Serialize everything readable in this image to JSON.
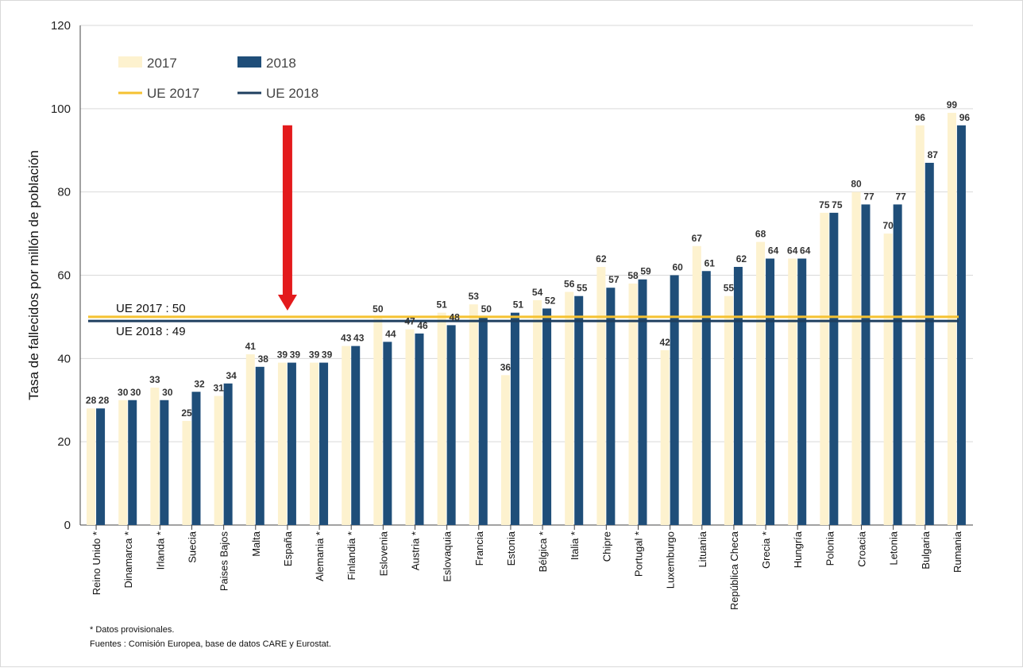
{
  "chart_data": {
    "type": "bar",
    "ylabel": "Tasa de fallecidos por millón de población",
    "xlabel": "",
    "ylim": [
      0,
      120
    ],
    "yticks": [
      0,
      20,
      40,
      60,
      80,
      100,
      120
    ],
    "grid": true,
    "legend_position": "top-left",
    "categories": [
      "Reino Unido *",
      "Dinamarca *",
      "Irlanda *",
      "Suecia",
      "Paises Bajos",
      "Malta",
      "España",
      "Alemania *",
      "Finlandia *",
      "Eslovenia",
      "Austria *",
      "Eslovaquia",
      "Francia",
      "Estonia",
      "Bélgica *",
      "Italia *",
      "Chipre",
      "Portugal *",
      "Luxemburgo",
      "Lituania",
      "República Checa",
      "Grecia *",
      "Hungría",
      "Polonia",
      "Croacia",
      "Letonia",
      "Bulgaria",
      "Rumania"
    ],
    "series": [
      {
        "name": "2017",
        "color": "#fdf2cf",
        "values": [
          28,
          30,
          33,
          25,
          31,
          41,
          39,
          39,
          43,
          50,
          47,
          51,
          53,
          36,
          54,
          56,
          62,
          58,
          42,
          67,
          55,
          68,
          64,
          75,
          80,
          70,
          96,
          99
        ]
      },
      {
        "name": "2018",
        "color": "#1f4e79",
        "values": [
          28,
          30,
          30,
          32,
          34,
          38,
          39,
          39,
          43,
          44,
          46,
          48,
          50,
          51,
          52,
          55,
          57,
          59,
          60,
          61,
          62,
          64,
          64,
          75,
          77,
          77,
          87,
          96
        ]
      }
    ],
    "reference_lines": [
      {
        "name": "UE 2017",
        "value": 50,
        "color": "#f5c232",
        "label": "UE 2017 : 50"
      },
      {
        "name": "UE 2018",
        "value": 49,
        "color": "#1f3f5f",
        "label": "UE 2018 : 49"
      }
    ],
    "annotation": {
      "type": "arrow",
      "color": "#e31a1c",
      "target_category": "España"
    }
  },
  "footnotes": {
    "line1": "* Datos provisionales.",
    "line2": "Fuentes : Comisión Europea, base de datos CARE y Eurostat."
  }
}
